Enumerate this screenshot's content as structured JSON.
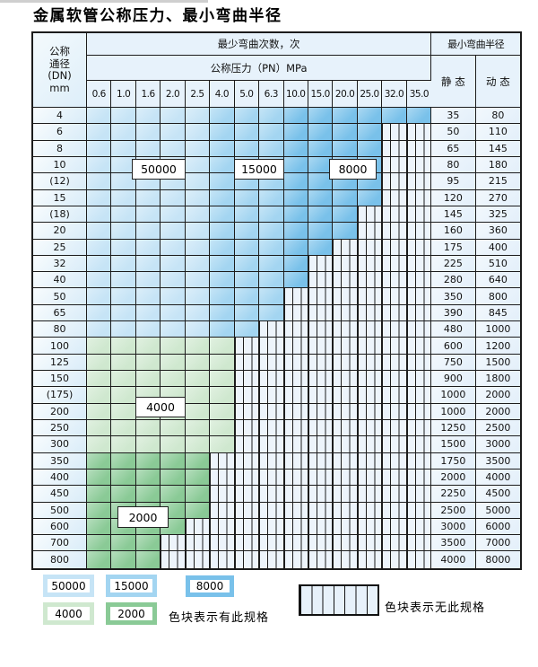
{
  "title": "金属软管公称压力、最小弯曲半径",
  "header": {
    "dn_lines": [
      "公称",
      "通径",
      "(DN)",
      "mm"
    ],
    "bend_cycles_label": "最少弯曲次数，次",
    "pressure_label": "公称压力（PN）MPa",
    "pressures": [
      "0.6",
      "1.0",
      "1.6",
      "2.0",
      "2.5",
      "4.0",
      "5.0",
      "6.3",
      "10.0",
      "15.0",
      "20.0",
      "25.0",
      "32.0",
      "35.0"
    ],
    "min_radius_label": "最小弯曲半径",
    "static_label": "静 态",
    "dynamic_label": "动 态"
  },
  "colors": {
    "c50000": "#c6e4f6",
    "c15000": "#a3d5f1",
    "c8000": "#79c1ea",
    "c4000": "#cfe8cf",
    "c2000": "#8aca96",
    "hatch_bg": "#edf4fb",
    "grid": "#1c1c1c"
  },
  "cycle_labels": [
    {
      "text": "50000"
    },
    {
      "text": "15000"
    },
    {
      "text": "8000"
    },
    {
      "text": "4000"
    },
    {
      "text": "2000"
    }
  ],
  "rows": [
    {
      "dn": "4",
      "colored_cols": 14,
      "cycle_type": "blue",
      "static": "35",
      "dynamic": "80"
    },
    {
      "dn": "6",
      "colored_cols": 12,
      "cycle_type": "blue",
      "static": "50",
      "dynamic": "110"
    },
    {
      "dn": "8",
      "colored_cols": 12,
      "cycle_type": "blue",
      "static": "65",
      "dynamic": "145"
    },
    {
      "dn": "10",
      "colored_cols": 12,
      "cycle_type": "blue",
      "static": "80",
      "dynamic": "180"
    },
    {
      "dn": "(12)",
      "colored_cols": 12,
      "cycle_type": "blue",
      "static": "95",
      "dynamic": "215"
    },
    {
      "dn": "15",
      "colored_cols": 12,
      "cycle_type": "blue",
      "static": "120",
      "dynamic": "270"
    },
    {
      "dn": "(18)",
      "colored_cols": 11,
      "cycle_type": "blue",
      "static": "145",
      "dynamic": "325"
    },
    {
      "dn": "20",
      "colored_cols": 11,
      "cycle_type": "blue",
      "static": "160",
      "dynamic": "360"
    },
    {
      "dn": "25",
      "colored_cols": 10,
      "cycle_type": "blue",
      "static": "175",
      "dynamic": "400"
    },
    {
      "dn": "32",
      "colored_cols": 9,
      "cycle_type": "blue",
      "static": "225",
      "dynamic": "510"
    },
    {
      "dn": "40",
      "colored_cols": 9,
      "cycle_type": "blue",
      "static": "280",
      "dynamic": "640"
    },
    {
      "dn": "50",
      "colored_cols": 8,
      "cycle_type": "blue",
      "static": "350",
      "dynamic": "800"
    },
    {
      "dn": "65",
      "colored_cols": 8,
      "cycle_type": "blue",
      "static": "390",
      "dynamic": "845"
    },
    {
      "dn": "80",
      "colored_cols": 7,
      "cycle_type": "blue",
      "static": "480",
      "dynamic": "1000"
    },
    {
      "dn": "100",
      "colored_cols": 6,
      "cycle_type": "4000",
      "static": "600",
      "dynamic": "1200"
    },
    {
      "dn": "125",
      "colored_cols": 6,
      "cycle_type": "4000",
      "static": "750",
      "dynamic": "1500"
    },
    {
      "dn": "150",
      "colored_cols": 6,
      "cycle_type": "4000",
      "static": "900",
      "dynamic": "1800"
    },
    {
      "dn": "(175)",
      "colored_cols": 6,
      "cycle_type": "4000",
      "static": "1000",
      "dynamic": "2000"
    },
    {
      "dn": "200",
      "colored_cols": 6,
      "cycle_type": "4000",
      "static": "1000",
      "dynamic": "2000"
    },
    {
      "dn": "250",
      "colored_cols": 6,
      "cycle_type": "4000",
      "static": "1250",
      "dynamic": "2500"
    },
    {
      "dn": "300",
      "colored_cols": 6,
      "cycle_type": "4000",
      "static": "1500",
      "dynamic": "3000"
    },
    {
      "dn": "350",
      "colored_cols": 5,
      "cycle_type": "2000",
      "static": "1750",
      "dynamic": "3500"
    },
    {
      "dn": "400",
      "colored_cols": 5,
      "cycle_type": "2000",
      "static": "2000",
      "dynamic": "4000"
    },
    {
      "dn": "450",
      "colored_cols": 5,
      "cycle_type": "2000",
      "static": "2250",
      "dynamic": "4500"
    },
    {
      "dn": "500",
      "colored_cols": 5,
      "cycle_type": "2000",
      "static": "2500",
      "dynamic": "5000"
    },
    {
      "dn": "600",
      "colored_cols": 4,
      "cycle_type": "2000",
      "static": "3000",
      "dynamic": "6000"
    },
    {
      "dn": "700",
      "colored_cols": 3,
      "cycle_type": "2000",
      "static": "3500",
      "dynamic": "7000"
    },
    {
      "dn": "800",
      "colored_cols": 3,
      "cycle_type": "2000",
      "static": "4000",
      "dynamic": "8000"
    }
  ],
  "legend": {
    "swatches": [
      {
        "text": "50000",
        "color": "#c6e4f6"
      },
      {
        "text": "15000",
        "color": "#a3d5f1"
      },
      {
        "text": "8000",
        "color": "#79c1ea"
      },
      {
        "text": "4000",
        "color": "#cfe8cf"
      },
      {
        "text": "2000",
        "color": "#8aca96"
      }
    ],
    "has_spec_text": "色块表示有此规格",
    "no_spec_text": "色块表示无此规格"
  }
}
